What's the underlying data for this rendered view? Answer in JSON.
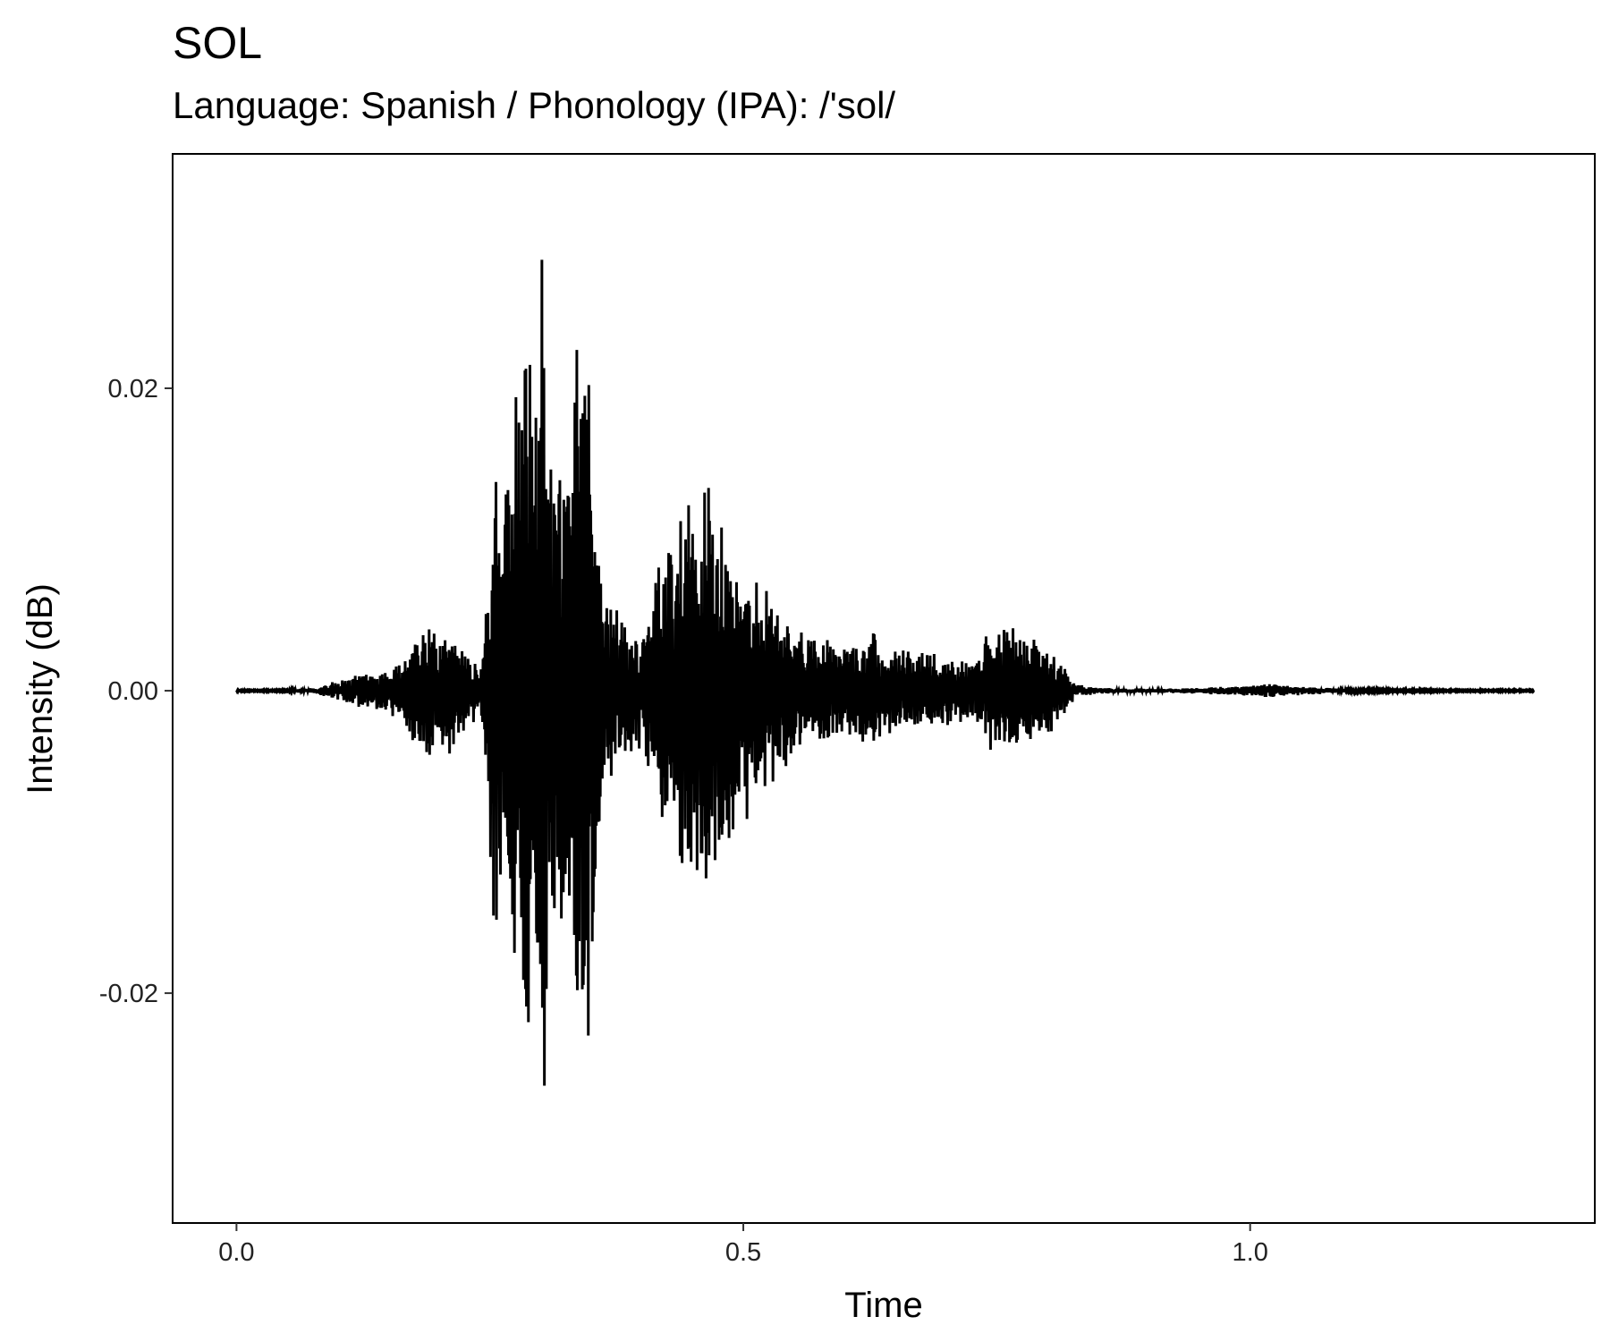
{
  "chart_data": {
    "type": "line",
    "title": "SOL",
    "subtitle": "Language: Spanish / Phonology (IPA): /'sol/",
    "xlabel": "Time",
    "ylabel": "Intensity (dB)",
    "xlim": [
      -0.063,
      1.34
    ],
    "ylim": [
      -0.0352,
      0.0355
    ],
    "x_ticks": [
      0.0,
      0.5,
      1.0
    ],
    "x_tick_labels": [
      "0.0",
      "0.5",
      "1.0"
    ],
    "y_ticks": [
      -0.02,
      0.0,
      0.02
    ],
    "y_tick_labels": [
      "-0.02",
      "0.00",
      "0.02"
    ],
    "grid": false,
    "legend": "none",
    "series": [
      {
        "color": "#000000",
        "envelope": {
          "x": [
            0.0,
            0.04,
            0.08,
            0.09,
            0.12,
            0.15,
            0.17,
            0.18,
            0.19,
            0.2,
            0.21,
            0.22,
            0.23,
            0.24,
            0.245,
            0.25,
            0.255,
            0.26,
            0.265,
            0.27,
            0.275,
            0.28,
            0.285,
            0.29,
            0.295,
            0.3,
            0.305,
            0.31,
            0.315,
            0.32,
            0.325,
            0.33,
            0.335,
            0.34,
            0.345,
            0.35,
            0.355,
            0.36,
            0.38,
            0.4,
            0.41,
            0.42,
            0.43,
            0.44,
            0.45,
            0.46,
            0.465,
            0.47,
            0.48,
            0.49,
            0.5,
            0.52,
            0.55,
            0.6,
            0.63,
            0.65,
            0.67,
            0.69,
            0.71,
            0.73,
            0.74,
            0.75,
            0.76,
            0.78,
            0.8,
            0.81,
            0.82,
            0.83,
            0.86,
            0.9,
            0.95,
            1.0,
            1.02,
            1.05,
            1.1,
            1.2,
            1.28
          ],
          "y": [
            5e-05,
            5e-05,
            0.0002,
            0.0005,
            0.0012,
            0.0016,
            0.003,
            0.0045,
            0.0048,
            0.004,
            0.0045,
            0.003,
            0.0032,
            0.0008,
            0.005,
            0.012,
            0.0175,
            0.015,
            0.0185,
            0.0205,
            0.023,
            0.0235,
            0.028,
            0.027,
            0.017,
            0.0325,
            0.025,
            0.017,
            0.016,
            0.0215,
            0.016,
            0.0145,
            0.0285,
            0.0235,
            0.028,
            0.026,
            0.015,
            0.007,
            0.005,
            0.0045,
            0.007,
            0.01,
            0.011,
            0.013,
            0.014,
            0.015,
            0.0165,
            0.013,
            0.014,
            0.011,
            0.0095,
            0.007,
            0.0045,
            0.0035,
            0.004,
            0.003,
            0.0025,
            0.003,
            0.0025,
            0.002,
            0.004,
            0.0045,
            0.0043,
            0.0042,
            0.0035,
            0.0025,
            0.0012,
            0.0004,
            0.0002,
            0.00015,
            0.0002,
            0.0004,
            0.0005,
            0.0003,
            0.0001,
            5e-05,
            5e-05
          ]
        }
      }
    ]
  }
}
